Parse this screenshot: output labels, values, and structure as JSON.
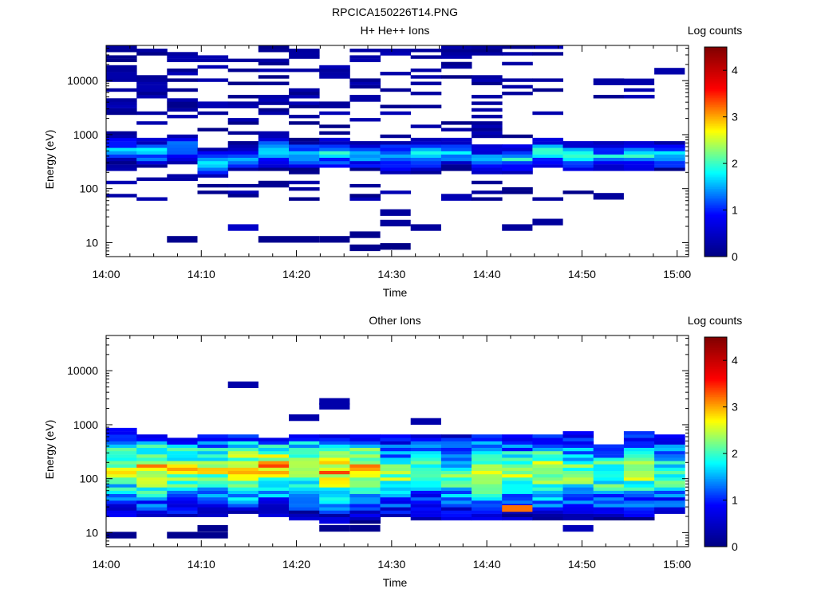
{
  "figure_title": "RPCICA150226T14.PNG",
  "colorbar_ticks": [
    "0",
    "1",
    "2",
    "3",
    "4"
  ],
  "colormap": [
    "#000080",
    "#0000ff",
    "#00ffff",
    "#ffff00",
    "#ff0000",
    "#800000"
  ],
  "chart_data": [
    {
      "type": "heatmap",
      "title": "H+ He++ Ions",
      "xlabel": "Time",
      "ylabel": "Energy (eV)",
      "colorbar_label": "Log counts",
      "x_ticks": [
        "14:00",
        "14:10",
        "14:20",
        "14:30",
        "14:40",
        "14:50",
        "15:00"
      ],
      "x_tick_minutes": [
        0,
        10,
        20,
        30,
        40,
        50,
        60
      ],
      "xlim_minutes": [
        0,
        61.2
      ],
      "y_ticks": [
        "10",
        "100",
        "1000",
        "10000"
      ],
      "y_tick_values": [
        10,
        100,
        1000,
        10000
      ],
      "ylim": [
        5.5,
        45000
      ],
      "yscale": "log",
      "clim": [
        0,
        4.5
      ],
      "time_bins_minutes": [
        0,
        3.2,
        6.4,
        9.6,
        12.8,
        16,
        19.2,
        22.4,
        25.6,
        28.8,
        32,
        35.2,
        38.4,
        41.6,
        44.8,
        48,
        51.2,
        54.4,
        57.6
      ],
      "bin_width_minutes": 3.2,
      "energy_peak_eV": [
        550,
        480,
        520,
        300,
        380,
        500,
        430,
        450,
        420,
        400,
        420,
        450,
        330,
        360,
        480,
        420,
        380,
        420,
        420
      ],
      "peak_log_counts": [
        1.5,
        1.7,
        1.6,
        1.9,
        1.5,
        1.6,
        1.8,
        1.9,
        1.9,
        1.8,
        1.8,
        1.7,
        1.6,
        1.9,
        2.1,
        1.9,
        1.7,
        1.9,
        2.0
      ],
      "background_density": [
        0.65,
        0.55,
        0.5,
        0.5,
        0.5,
        0.5,
        0.45,
        0.45,
        0.45,
        0.45,
        0.4,
        0.45,
        0.45,
        0.3,
        0.15,
        0.05,
        0.06,
        0.04,
        0.05
      ],
      "isolated_cells": [
        {
          "t": 6.4,
          "e": 11.5,
          "v": 0.1
        },
        {
          "t": 12.8,
          "e": 19,
          "v": 0.5
        },
        {
          "t": 16,
          "e": 11.5,
          "v": 0.1
        },
        {
          "t": 19.2,
          "e": 11.5,
          "v": 0.1
        },
        {
          "t": 22.4,
          "e": 11.5,
          "v": 0.1
        },
        {
          "t": 25.6,
          "e": 14,
          "v": 0.1
        },
        {
          "t": 25.6,
          "e": 8,
          "v": 0.1
        },
        {
          "t": 28.8,
          "e": 8.5,
          "v": 0.05
        },
        {
          "t": 28.8,
          "e": 23,
          "v": 0.2
        },
        {
          "t": 28.8,
          "e": 36,
          "v": 0.2
        },
        {
          "t": 32,
          "e": 19,
          "v": 0.2
        },
        {
          "t": 41.6,
          "e": 19,
          "v": 0.2
        },
        {
          "t": 44.8,
          "e": 24,
          "v": 0.2
        },
        {
          "t": 51.2,
          "e": 72,
          "v": 0.2
        },
        {
          "t": 54.4,
          "e": 9500,
          "v": 0.3
        },
        {
          "t": 57.6,
          "e": 15000,
          "v": 0.3
        }
      ]
    },
    {
      "type": "heatmap",
      "title": "Other Ions",
      "xlabel": "Time",
      "ylabel": "Energy (eV)",
      "colorbar_label": "Log counts",
      "x_ticks": [
        "14:00",
        "14:10",
        "14:20",
        "14:30",
        "14:40",
        "14:50",
        "15:00"
      ],
      "x_tick_minutes": [
        0,
        10,
        20,
        30,
        40,
        50,
        60
      ],
      "xlim_minutes": [
        0,
        61.2
      ],
      "y_ticks": [
        "10",
        "100",
        "1000",
        "10000"
      ],
      "y_tick_values": [
        10,
        100,
        1000,
        10000
      ],
      "ylim": [
        5.5,
        45000
      ],
      "yscale": "log",
      "clim": [
        0,
        4.5
      ],
      "time_bins_minutes": [
        0,
        3.2,
        6.4,
        9.6,
        12.8,
        16,
        19.2,
        22.4,
        25.6,
        28.8,
        32,
        35.2,
        38.4,
        41.6,
        44.8,
        48,
        51.2,
        54.4,
        57.6
      ],
      "bin_width_minutes": 3.2,
      "energy_min_eV": [
        20,
        20,
        20,
        20,
        22,
        20,
        18,
        14,
        14,
        20,
        18,
        18,
        18,
        18,
        18,
        18,
        16,
        18,
        22
      ],
      "energy_max_eV": [
        850,
        650,
        560,
        620,
        620,
        560,
        650,
        620,
        620,
        700,
        650,
        700,
        620,
        700,
        620,
        800,
        450,
        720,
        620
      ],
      "energy_peak_eV": [
        150,
        150,
        140,
        150,
        150,
        170,
        160,
        130,
        140,
        120,
        140,
        120,
        130,
        130,
        140,
        120,
        120,
        140,
        130
      ],
      "peak_log_counts": [
        2.6,
        2.9,
        2.7,
        2.6,
        2.9,
        3.0,
        2.8,
        2.9,
        3.0,
        2.3,
        2.1,
        2.2,
        2.6,
        2.4,
        2.7,
        2.4,
        2.3,
        2.5,
        2.2
      ],
      "isolated_cells": [
        {
          "t": 0,
          "e": 9,
          "v": 0.1
        },
        {
          "t": 6.4,
          "e": 9,
          "v": 0.1
        },
        {
          "t": 9.6,
          "e": 9,
          "v": 0.1
        },
        {
          "t": 9.6,
          "e": 12,
          "v": 0.1
        },
        {
          "t": 12.8,
          "e": 5500,
          "v": 0.3
        },
        {
          "t": 19.2,
          "e": 1350,
          "v": 0.3
        },
        {
          "t": 22.4,
          "e": 2200,
          "v": 0.3
        },
        {
          "t": 22.4,
          "e": 2700,
          "v": 0.3
        },
        {
          "t": 22.4,
          "e": 12,
          "v": 0.1
        },
        {
          "t": 25.6,
          "e": 12,
          "v": 0.1
        },
        {
          "t": 32,
          "e": 1150,
          "v": 0.3
        },
        {
          "t": 48,
          "e": 12,
          "v": 0.4
        },
        {
          "t": 41.6,
          "e": 28,
          "v": 3.2
        }
      ]
    }
  ]
}
